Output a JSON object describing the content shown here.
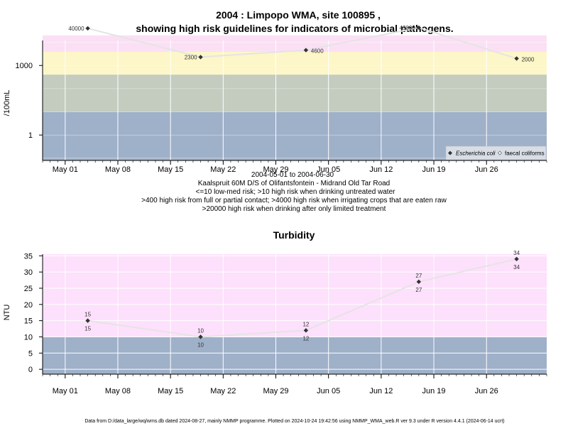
{
  "footer": "Data from D:/data_large/wq/wms.db dated 2024-08-27, mainly NMMP programme. Plotted on 2024-10-24 19:42:56 using NMMP_WMA_web.R ver 9.3 under R version 4.4.1 (2024-06-14 ucrt)",
  "colors": {
    "bg_panel": "#9fb0c9",
    "band_green": "#c4ccc0",
    "band_yellow": "#fdf6c8",
    "band_pink_light": "#fbe0f5",
    "band_red": "#f8b4c4",
    "turb_pink": "#fde0fb",
    "turb_blue": "#9fb0c9",
    "marker": "#333333",
    "line": "#e4e4e4"
  },
  "chart_data": [
    {
      "type": "line",
      "title_line1": "2004 : Limpopo WMA, site 100895 ,",
      "title_line2": "showing high risk guidelines for indicators of microbial pathogens.",
      "ylabel": "/100mL",
      "yscale": "log10",
      "ylim": [
        0.08,
        12000
      ],
      "yticks": [
        1,
        1000
      ],
      "ytick_labels": [
        "1",
        "1000"
      ],
      "x_ticks": [
        "May 01",
        "May 08",
        "May 15",
        "May 22",
        "May 29",
        "Jun 05",
        "Jun 12",
        "Jun 19",
        "Jun 26"
      ],
      "x_tick_dates": [
        "2004-05-01",
        "2004-05-08",
        "2004-05-15",
        "2004-05-22",
        "2004-05-29",
        "2004-06-05",
        "2004-06-12",
        "2004-06-19",
        "2004-06-26"
      ],
      "xlim": [
        "2004-04-28",
        "2004-07-04"
      ],
      "caption_lines": [
        "2004-05-01 to 2004-06-30",
        "Kaalspruit 60M D/S of Olifantsfontein - Midrand Old Tar Road",
        "<=10 low-med risk; >10 high risk when drinking untreated water",
        ">400 high risk from full or partial contact; >4000 high risk when irrigating crops that are eaten raw",
        ">20000 high risk when drinking after only limited treatment"
      ],
      "series": [
        {
          "name": "Escherichia coli",
          "x": [
            "2004-05-04",
            "2004-05-19",
            "2004-06-02",
            "2004-06-17",
            "2004-06-30"
          ],
          "values": [
            40000,
            2300,
            4600,
            43000,
            2000
          ],
          "labels": [
            "40000",
            "2300",
            "4600",
            "43000",
            "2000"
          ]
        }
      ],
      "legend": {
        "position": "bottom-right",
        "entries": [
          "Escherichia coli",
          "faecal coliforms"
        ]
      }
    },
    {
      "type": "line",
      "title": "Turbidity",
      "ylabel": "NTU",
      "ylim": [
        -1.5,
        35.5
      ],
      "yticks": [
        0,
        5,
        10,
        15,
        20,
        25,
        30,
        35
      ],
      "x_ticks": [
        "May 01",
        "May 08",
        "May 15",
        "May 22",
        "May 29",
        "Jun 05",
        "Jun 12",
        "Jun 19",
        "Jun 26"
      ],
      "x_tick_dates": [
        "2004-05-01",
        "2004-05-08",
        "2004-05-15",
        "2004-05-22",
        "2004-05-29",
        "2004-06-05",
        "2004-06-12",
        "2004-06-19",
        "2004-06-26"
      ],
      "xlim": [
        "2004-04-28",
        "2004-07-04"
      ],
      "series": [
        {
          "x": [
            "2004-05-04",
            "2004-05-19",
            "2004-06-02",
            "2004-06-17",
            "2004-06-30"
          ],
          "values": [
            15,
            10,
            12,
            27,
            34
          ],
          "labels": [
            "15",
            "10",
            "12",
            "27",
            "34"
          ]
        }
      ]
    }
  ]
}
